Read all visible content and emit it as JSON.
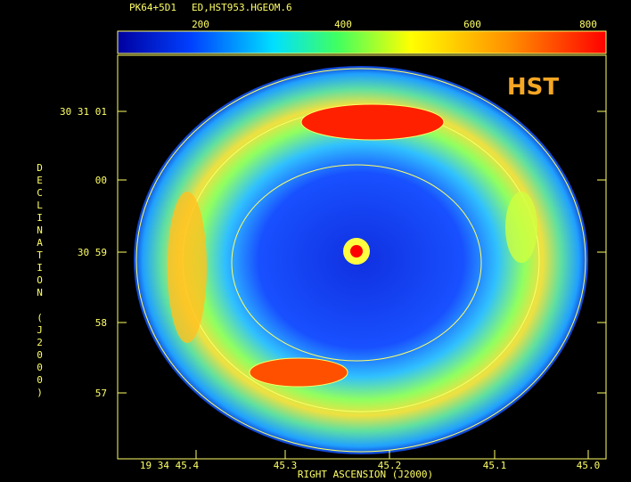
{
  "header": {
    "object": "PK64+5D1",
    "file": "ED,HST953.HGEOM.6"
  },
  "colorbar": {
    "ticks": [
      200,
      400,
      600,
      800
    ]
  },
  "label": "HST",
  "y_axis": {
    "title": "DECLINATION (J2000)",
    "ticks": [
      "30 31 01",
      "00",
      "30 59",
      "58",
      "57"
    ]
  },
  "x_axis": {
    "title": "RIGHT ASCENSION (J2000)",
    "ticks": [
      "19 34 45.4",
      "45.3",
      "45.2",
      "45.1",
      "45.0"
    ]
  }
}
